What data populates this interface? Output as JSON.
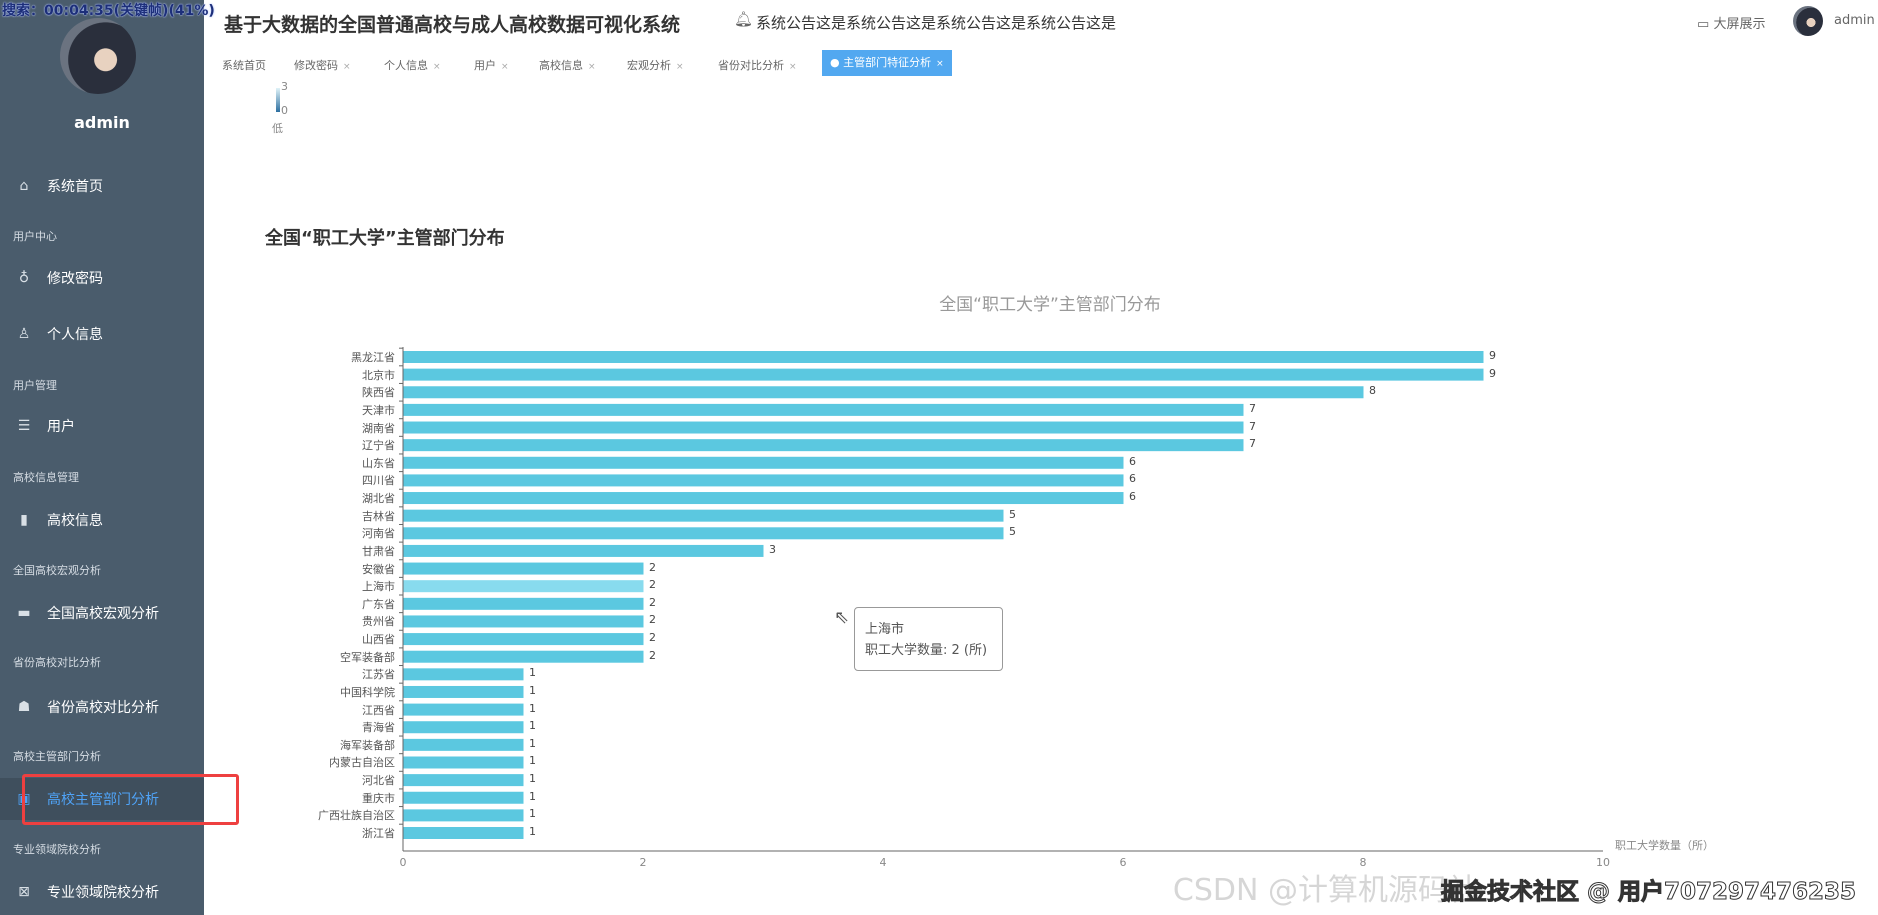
{
  "overlay_text": "搜索：00:04:35(关键帧)(41%)",
  "sidebar": {
    "username": "admin",
    "items": [
      {
        "type": "item",
        "label": "系统首页",
        "icon": "home-icon",
        "glyph": "⌂"
      },
      {
        "type": "group",
        "label": "用户中心"
      },
      {
        "type": "item",
        "label": "修改密码",
        "icon": "key-icon",
        "glyph": "♁"
      },
      {
        "type": "item",
        "label": "个人信息",
        "icon": "user-icon",
        "glyph": "♙"
      },
      {
        "type": "group",
        "label": "用户管理"
      },
      {
        "type": "item",
        "label": "用户",
        "icon": "list-icon",
        "glyph": "☰"
      },
      {
        "type": "group",
        "label": "高校信息管理"
      },
      {
        "type": "item",
        "label": "高校信息",
        "icon": "bar-chart-icon",
        "glyph": "▮"
      },
      {
        "type": "group",
        "label": "全国高校宏观分析"
      },
      {
        "type": "item",
        "label": "全国高校宏观分析",
        "icon": "monitor-icon",
        "glyph": "▬"
      },
      {
        "type": "group",
        "label": "省份高校对比分析"
      },
      {
        "type": "item",
        "label": "省份高校对比分析",
        "icon": "person-icon",
        "glyph": "☗"
      },
      {
        "type": "group",
        "label": "高校主管部门分析"
      },
      {
        "type": "item",
        "label": "高校主管部门分析",
        "icon": "image-icon",
        "glyph": "▣",
        "active": true
      },
      {
        "type": "group",
        "label": "专业领域院校分析"
      },
      {
        "type": "item",
        "label": "专业领域院校分析",
        "icon": "box-icon",
        "glyph": "⊠"
      }
    ]
  },
  "header": {
    "title": "基于大数据的全国普通高校与成人高校数据可视化系统",
    "notice": "系统公告这是系统公告这是系统公告这是系统公告这是",
    "big_screen": "大屏展示",
    "user": "admin"
  },
  "tabs": [
    {
      "label": "系统首页",
      "closable": false
    },
    {
      "label": "修改密码",
      "closable": true
    },
    {
      "label": "个人信息",
      "closable": true
    },
    {
      "label": "用户",
      "closable": true
    },
    {
      "label": "高校信息",
      "closable": true
    },
    {
      "label": "宏观分析",
      "closable": true
    },
    {
      "label": "省份对比分析",
      "closable": true
    },
    {
      "label": "主管部门特征分析",
      "closable": true,
      "active": true
    }
  ],
  "visual_map": {
    "max": "3",
    "min": "0",
    "low_label": "低"
  },
  "section_heading": "全国“职工大学”主管部门分布",
  "chart_data": {
    "type": "bar",
    "orientation": "horizontal",
    "title": "全国“职工大学”主管部门分布",
    "xlabel": "职工大学数量（所）",
    "xlim": [
      0,
      10
    ],
    "xticks": [
      0,
      2,
      4,
      6,
      8,
      10
    ],
    "categories": [
      "黑龙江省",
      "北京市",
      "陕西省",
      "天津市",
      "湖南省",
      "辽宁省",
      "山东省",
      "四川省",
      "湖北省",
      "吉林省",
      "河南省",
      "甘肃省",
      "安徽省",
      "上海市",
      "广东省",
      "贵州省",
      "山西省",
      "空军装备部",
      "江苏省",
      "中国科学院",
      "江西省",
      "青海省",
      "海军装备部",
      "内蒙古自治区",
      "河北省",
      "重庆市",
      "广西壮族自治区",
      "浙江省"
    ],
    "values": [
      9,
      9,
      8,
      7,
      7,
      7,
      6,
      6,
      6,
      5,
      5,
      3,
      2,
      2,
      2,
      2,
      2,
      2,
      1,
      1,
      1,
      1,
      1,
      1,
      1,
      1,
      1,
      1
    ],
    "bar_color": "#5bc8e0",
    "highlight_color": "#88dbee",
    "highlighted": "上海市",
    "grid": false,
    "tooltip": {
      "title": "上海市",
      "line": "职工大学数量: 2 (所)"
    }
  },
  "watermark": {
    "main": "掘金技术社区 @ 用户707297476235",
    "faint": "CSDN @计算机源码社"
  }
}
